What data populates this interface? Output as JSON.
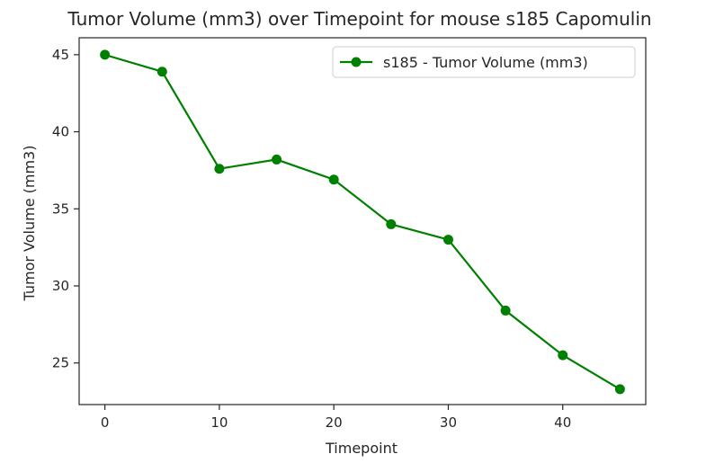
{
  "chart_data": {
    "type": "line",
    "title": "Tumor Volume (mm3) over Timepoint for mouse s185 Capomulin",
    "xlabel": "Timepoint",
    "ylabel": "Tumor Volume (mm3)",
    "xlim": [
      -2.25,
      47.25
    ],
    "ylim": [
      22.3,
      46.1
    ],
    "xticks": [
      0,
      10,
      20,
      30,
      40
    ],
    "yticks": [
      25,
      30,
      35,
      40,
      45
    ],
    "grid": false,
    "legend_position": "top-right",
    "series": [
      {
        "name": "s185 - Tumor Volume (mm3)",
        "color": "#008000",
        "marker": "circle",
        "x": [
          0,
          5,
          10,
          15,
          20,
          25,
          30,
          35,
          40,
          45
        ],
        "y": [
          45.0,
          43.9,
          37.6,
          38.2,
          36.9,
          34.0,
          33.0,
          28.4,
          25.5,
          23.3
        ]
      }
    ]
  }
}
